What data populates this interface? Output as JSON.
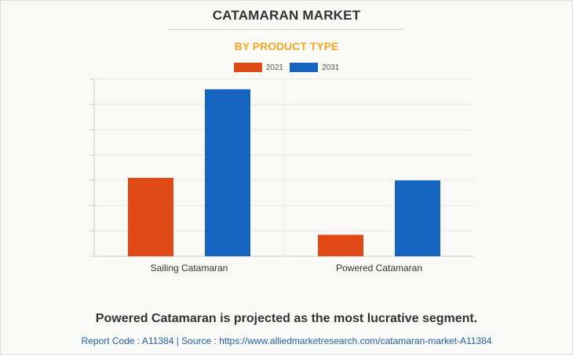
{
  "colors": {
    "series_2021": "#e04a17",
    "series_2031": "#1565c0",
    "subtitle": "#f5a623"
  },
  "header": {
    "title": "CATAMARAN MARKET",
    "subtitle": "BY PRODUCT TYPE"
  },
  "chart_data": {
    "type": "bar",
    "categories": [
      "Sailing Catamaran",
      "Powered Catamaran"
    ],
    "series": [
      {
        "name": "2021",
        "values": [
          31,
          8.5
        ],
        "color": "#e04a17"
      },
      {
        "name": "2031",
        "values": [
          66,
          30
        ],
        "color": "#1565c0"
      }
    ],
    "ylim": [
      0,
      70
    ],
    "grid": true,
    "legend": "top-center"
  },
  "footer": {
    "conclusion": "Powered Catamaran is projected as the most lucrative segment.",
    "source": "Report Code : A11384  |  Source : https://www.alliedmarketresearch.com/catamaran-market-A11384"
  }
}
